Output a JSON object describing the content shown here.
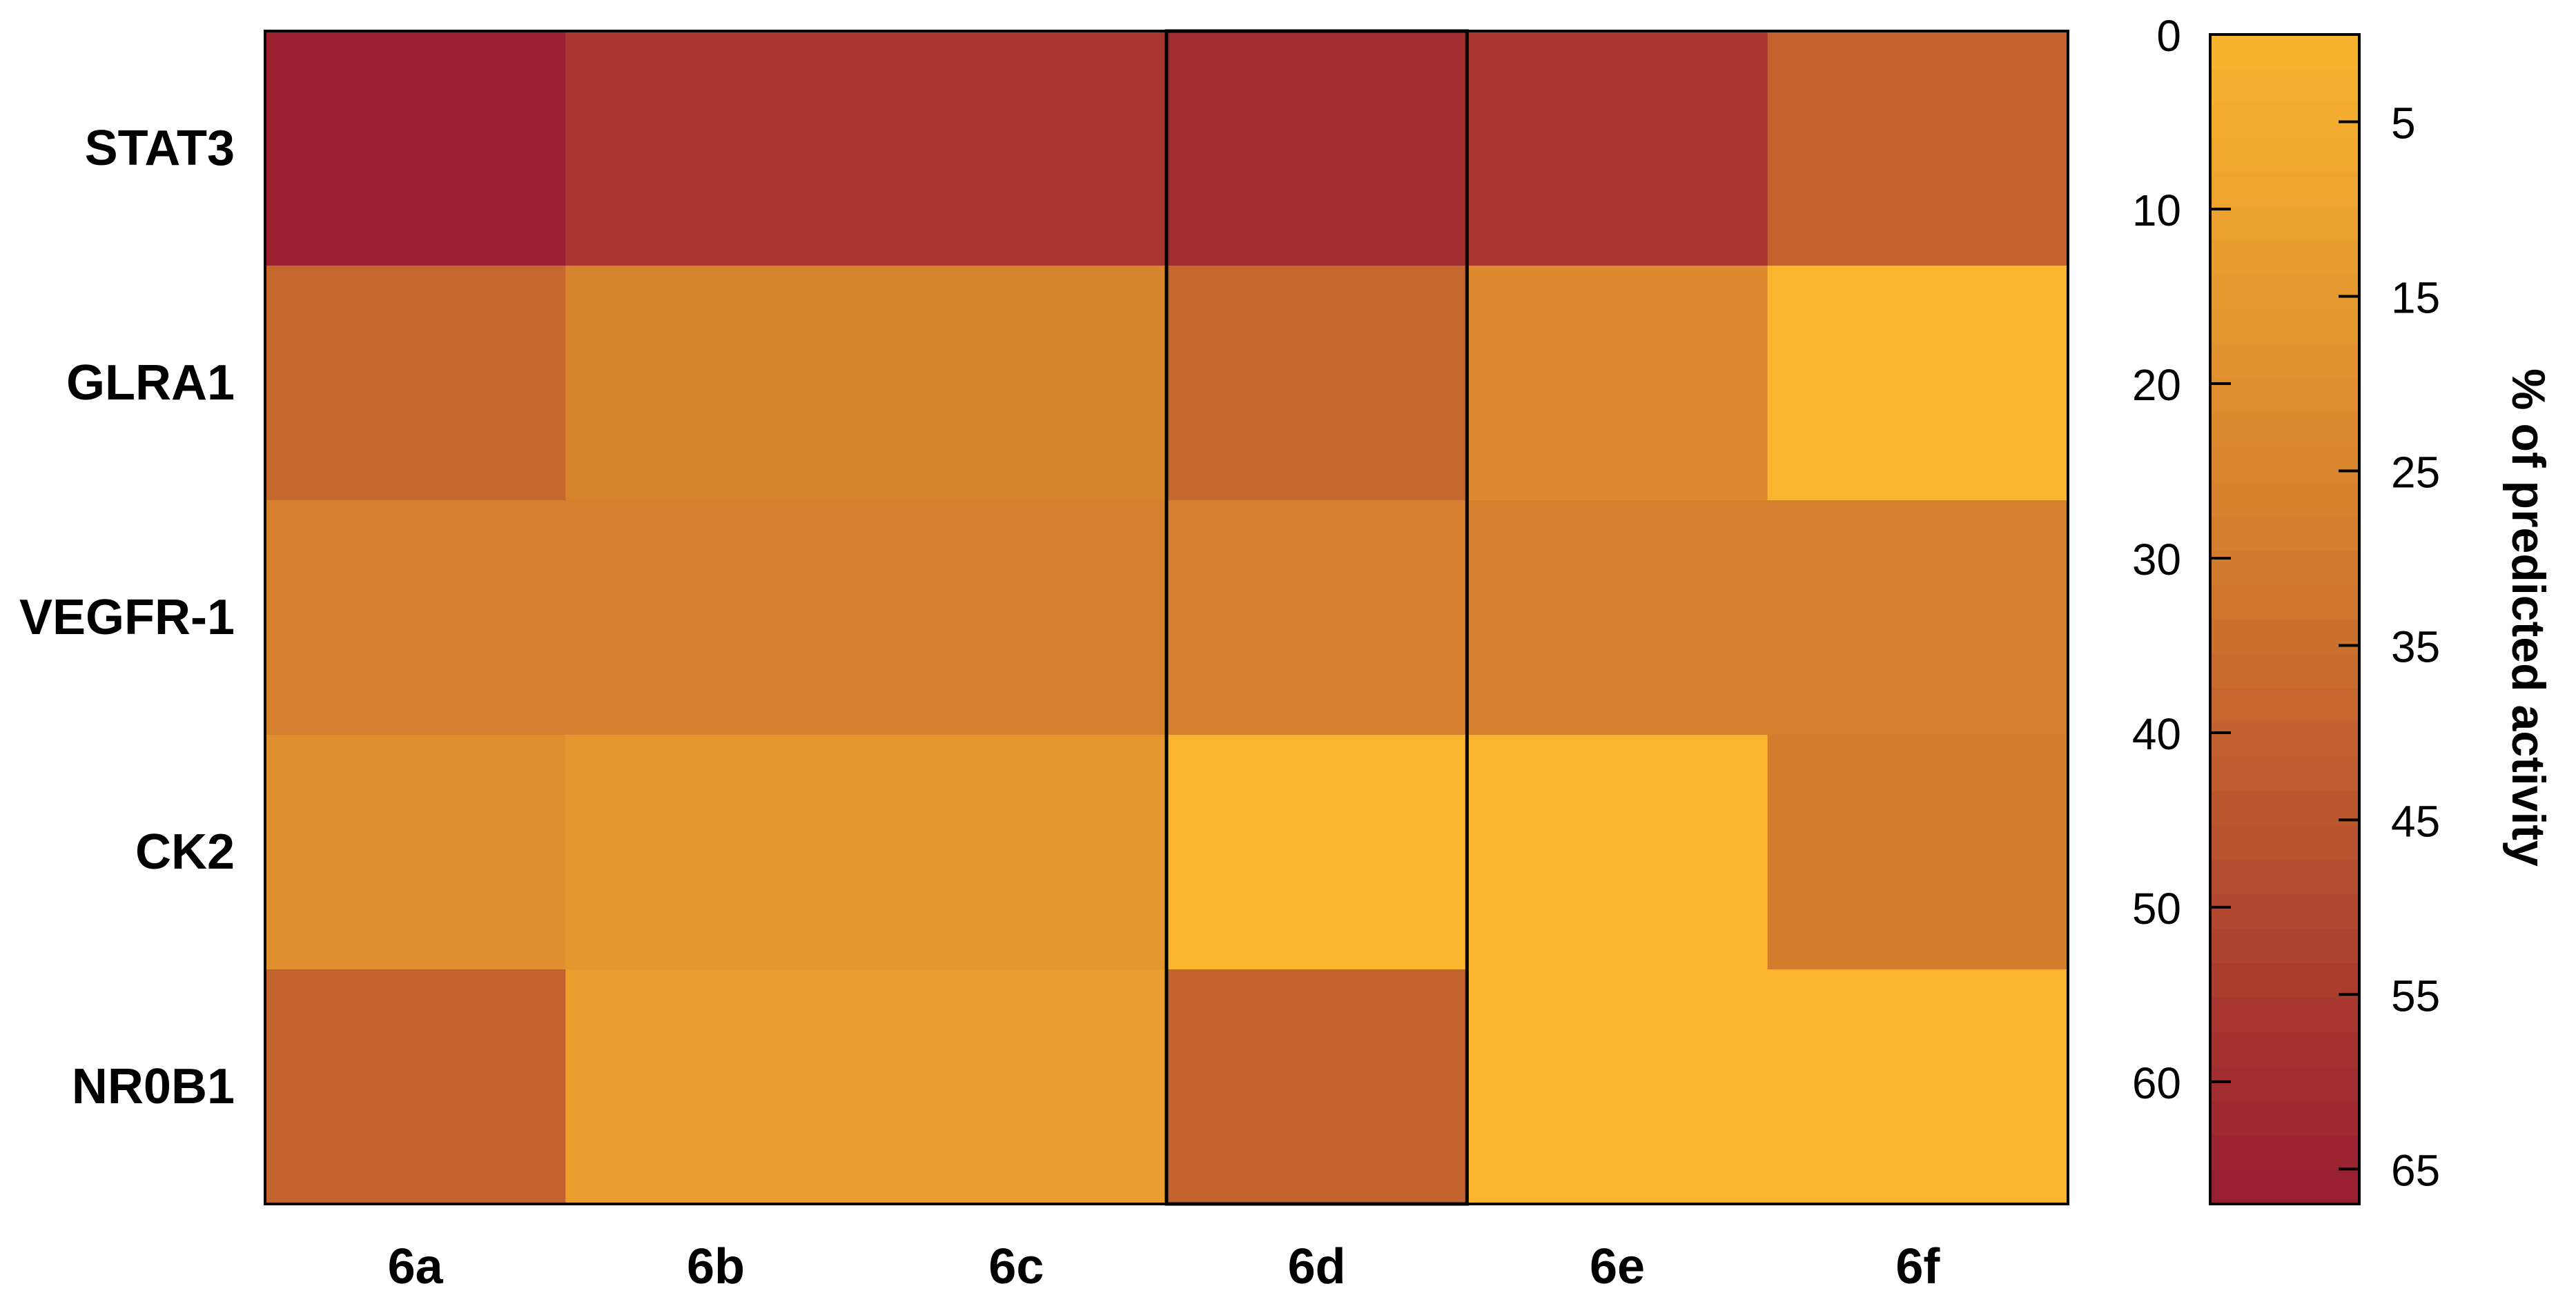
{
  "chart_data": {
    "type": "heatmap",
    "rows": [
      "STAT3",
      "GLRA1",
      "VEGFR-1",
      "CK2",
      "NR0B1"
    ],
    "columns": [
      "6a",
      "6b",
      "6c",
      "6d",
      "6e",
      "6f"
    ],
    "values": [
      [
        65,
        57,
        57,
        60,
        57,
        40
      ],
      [
        38,
        26,
        26,
        38,
        22,
        0
      ],
      [
        28,
        28,
        28,
        28,
        28,
        28
      ],
      [
        20,
        16,
        16,
        0,
        0,
        30
      ],
      [
        40,
        12,
        12,
        40,
        0,
        0
      ]
    ],
    "highlighted_column": "6d",
    "colorbar": {
      "label": "% of predicted activity",
      "range": [
        0,
        67
      ],
      "left_ticks": [
        "0",
        "10",
        "20",
        "30",
        "40",
        "50",
        "60"
      ],
      "right_ticks": [
        "5",
        "15",
        "25",
        "35",
        "45",
        "55",
        "65"
      ],
      "color_low": "#F9B52E",
      "color_mid": "#D27C2E",
      "color_high": "#961C30"
    }
  }
}
